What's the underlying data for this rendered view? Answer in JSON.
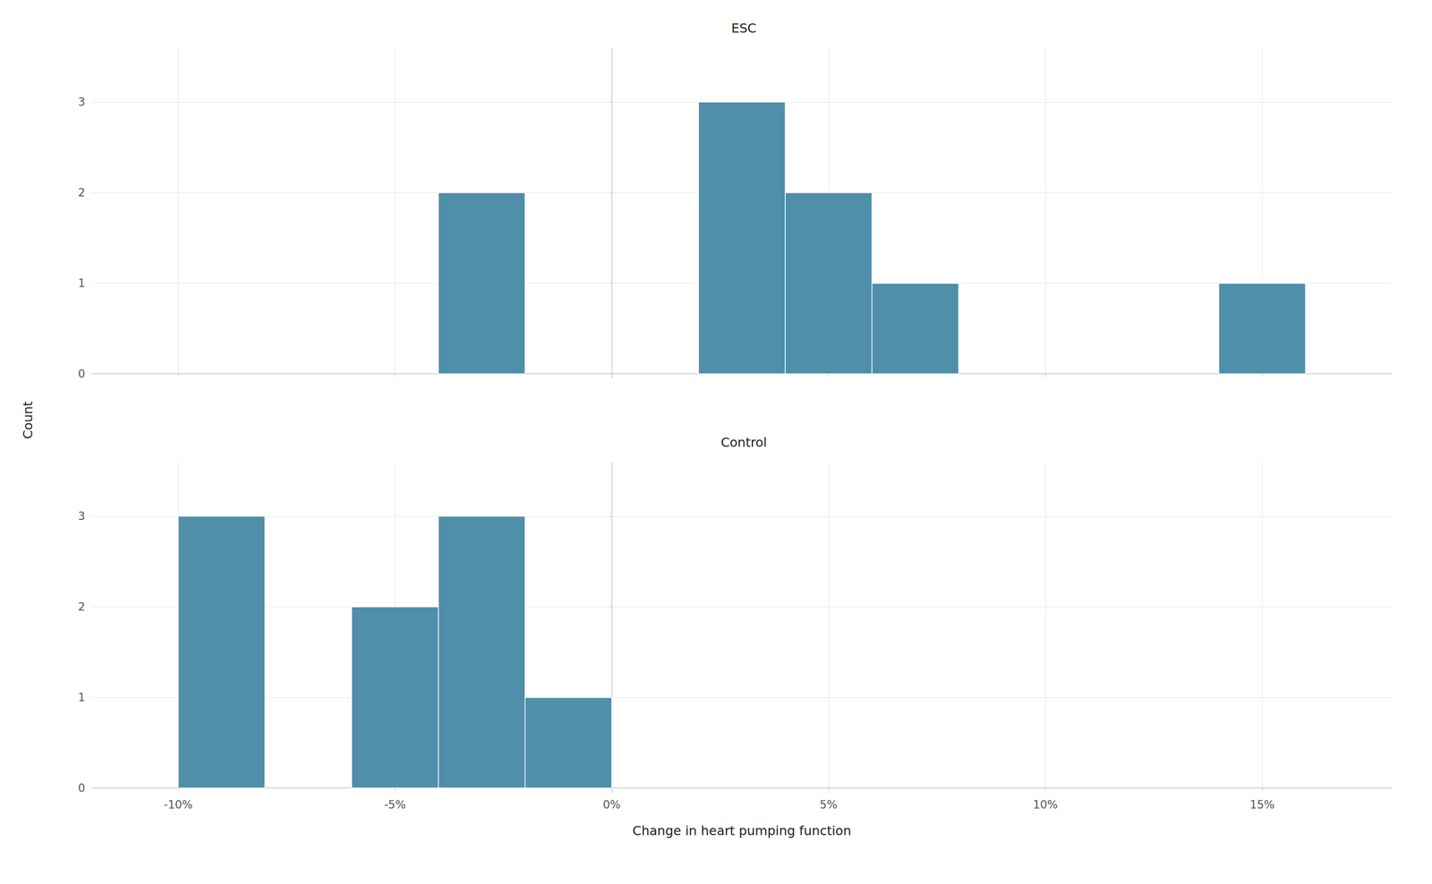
{
  "chart_data": [
    {
      "type": "histogram",
      "title": "ESC",
      "bin_edges": [
        [
          -4,
          -2
        ],
        [
          2,
          4
        ],
        [
          4,
          6
        ],
        [
          6,
          8
        ],
        [
          14,
          16
        ]
      ],
      "values": [
        2,
        3,
        2,
        1,
        1
      ],
      "color": "#4f8faa",
      "ylabel": "Count",
      "xlim": [
        -12,
        18
      ],
      "xticks": [
        -10,
        -5,
        0,
        5,
        10,
        15
      ],
      "ylim": [
        -0.05,
        3.6
      ],
      "yticks": [
        0,
        1,
        2,
        3
      ],
      "grid": true,
      "tick_labels": "y"
    },
    {
      "type": "histogram",
      "title": "Control",
      "bin_edges": [
        [
          -10,
          -8
        ],
        [
          -6,
          -4
        ],
        [
          -4,
          -2
        ],
        [
          -2,
          0
        ]
      ],
      "values": [
        3,
        2,
        3,
        1
      ],
      "color": "#4f8faa",
      "xlabel": "Change in heart pumping function",
      "xlim": [
        -12,
        18
      ],
      "xticks": [
        {
          "value": -10,
          "label": "-10%"
        },
        {
          "value": -5,
          "label": "-5%"
        },
        {
          "value": 0,
          "label": "0%"
        },
        {
          "value": 5,
          "label": "5%"
        },
        {
          "value": 10,
          "label": "10%"
        },
        {
          "value": 15,
          "label": "15%"
        }
      ],
      "ylim": [
        -0.05,
        3.6
      ],
      "yticks": [
        0,
        1,
        2,
        3
      ],
      "grid": true
    }
  ]
}
